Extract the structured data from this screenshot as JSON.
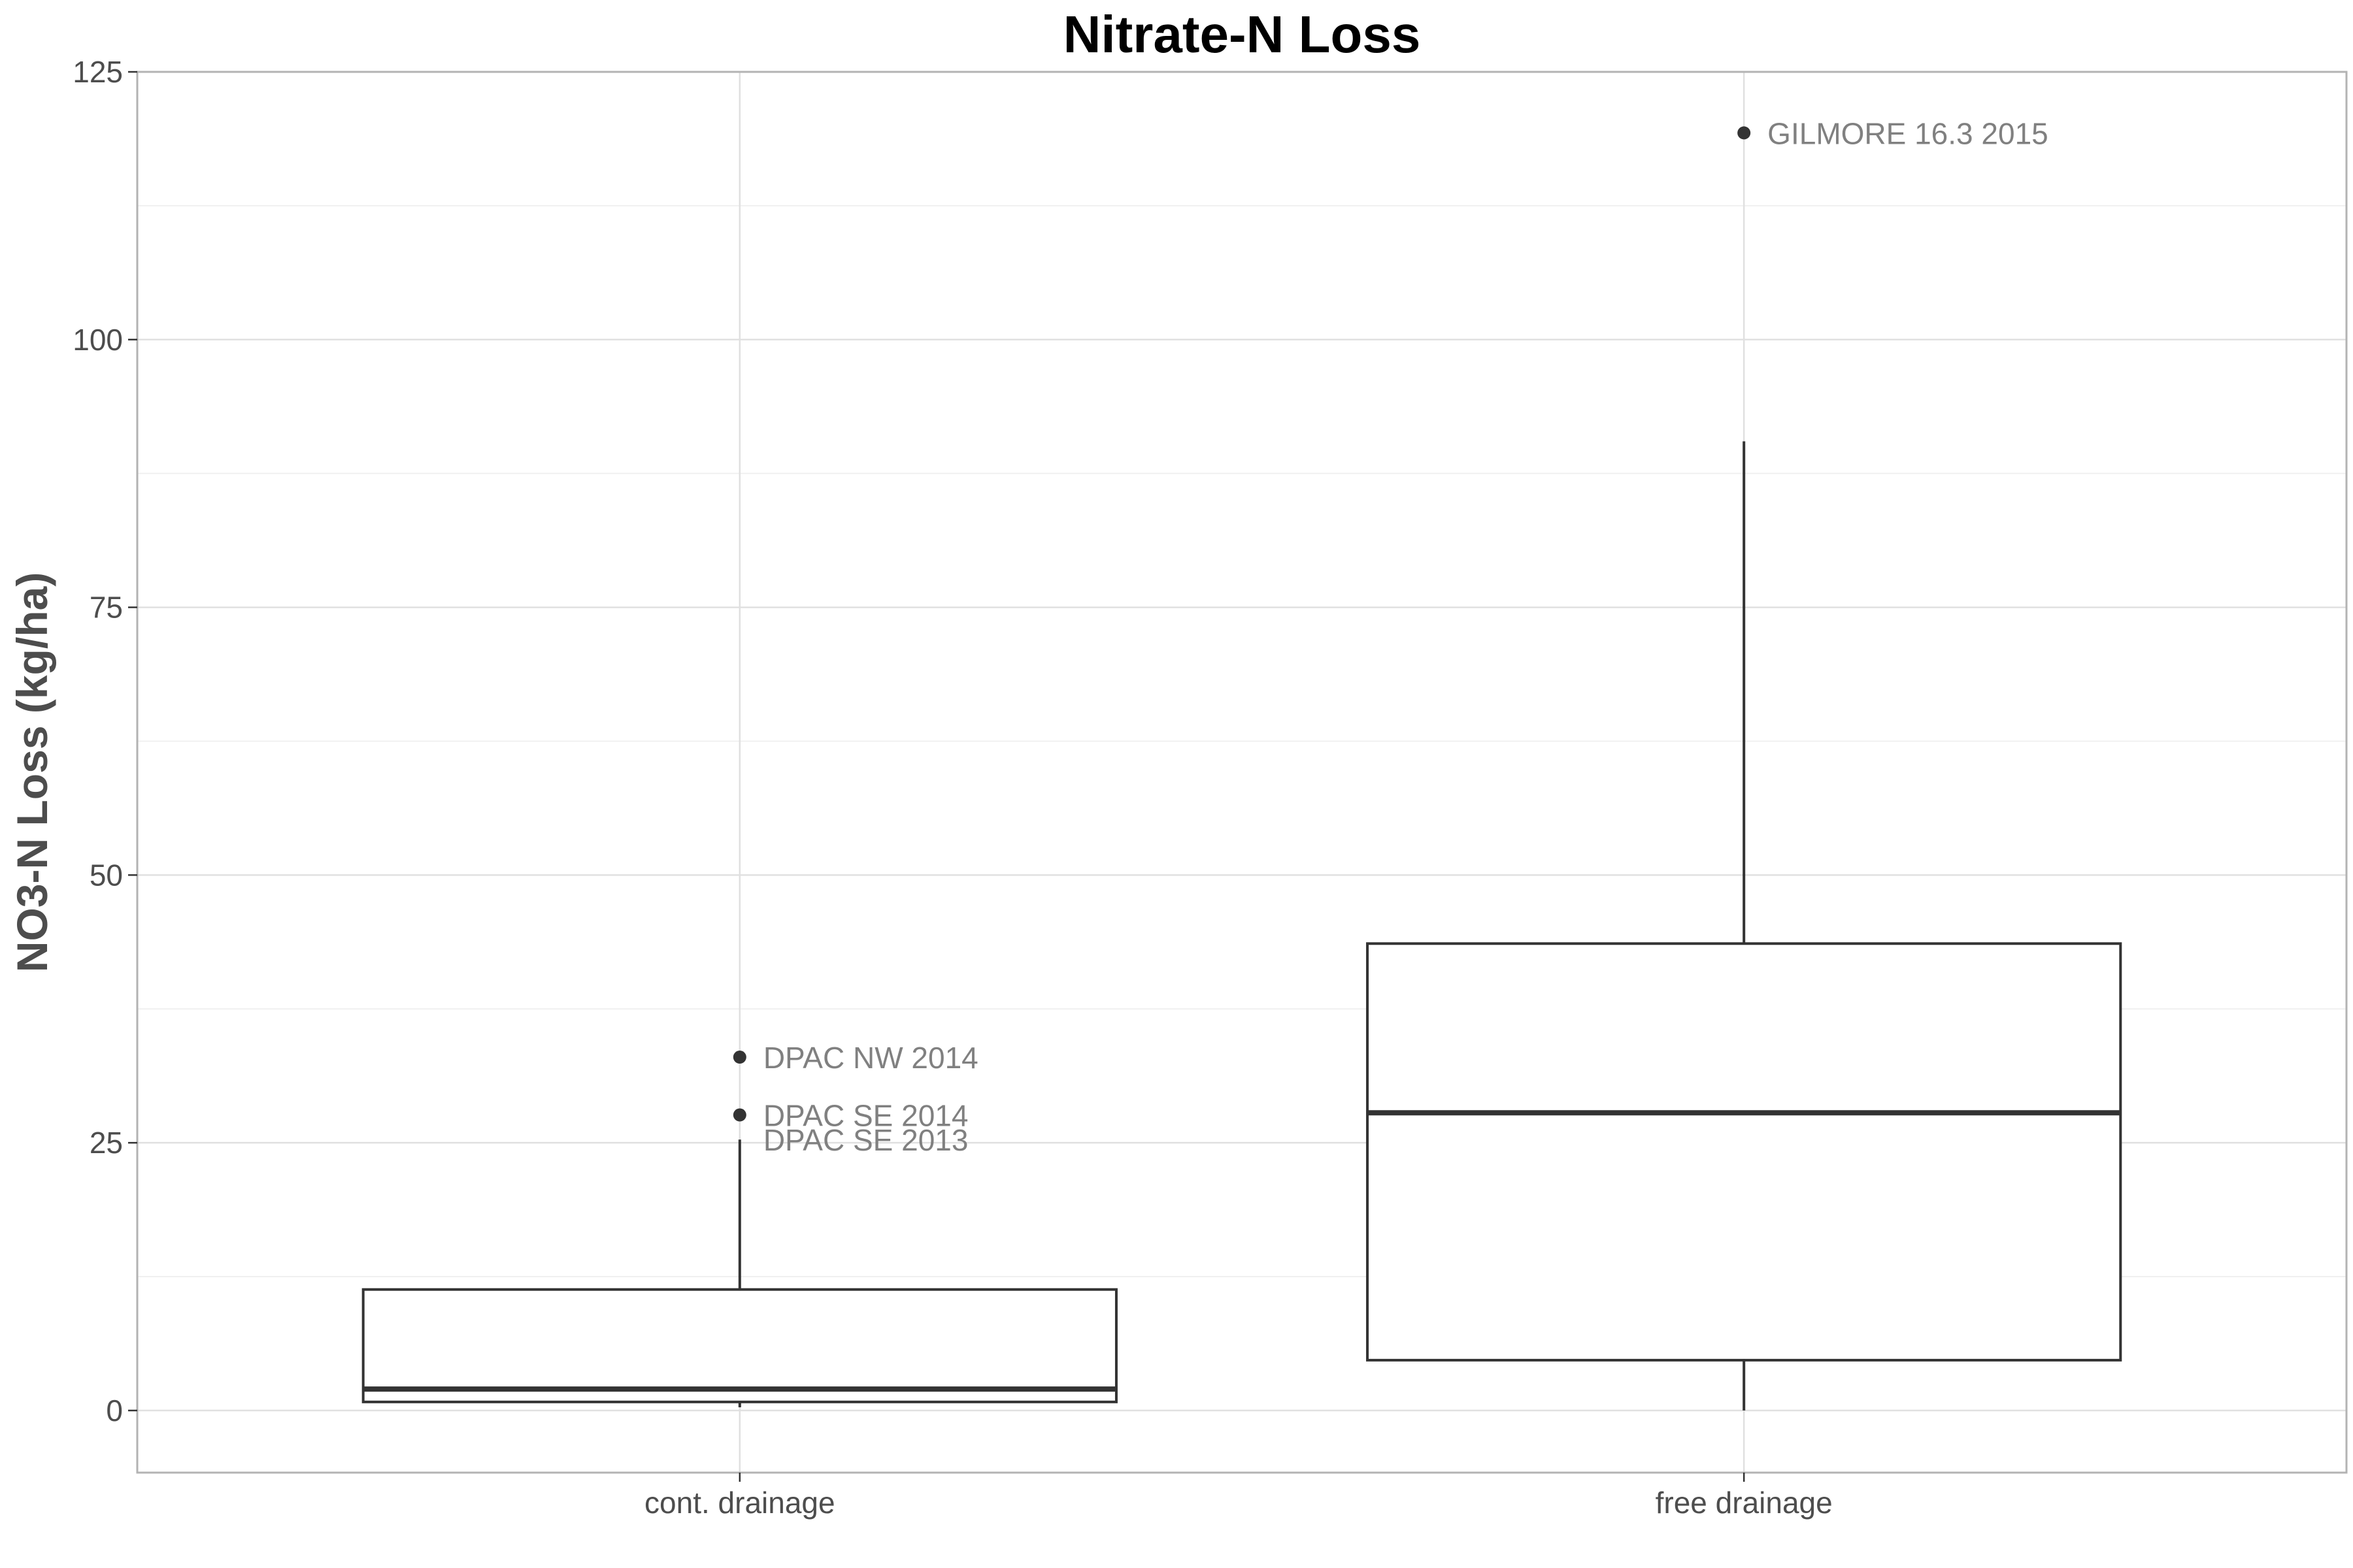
{
  "chart_data": {
    "type": "boxplot",
    "title": "Nitrate-N Loss",
    "xlabel": "",
    "ylabel": "NO3-N Loss (kg/ha)",
    "ylim": [
      -5.8,
      125
    ],
    "yticks": [
      0,
      25,
      50,
      75,
      100,
      125
    ],
    "y_tick_labels": [
      "0",
      "25",
      "50",
      "75",
      "100",
      "125"
    ],
    "grid": true,
    "legend": "none",
    "categories": [
      "cont. drainage",
      "free drainage"
    ],
    "boxes": [
      {
        "category": "cont. drainage",
        "whisker_low": 0.3,
        "q1": 0.8,
        "median": 2.0,
        "q3": 11.3,
        "whisker_high": 25.3,
        "outliers": [
          {
            "value": 33.0,
            "label": "DPAC NW 2014"
          },
          {
            "value": 27.6,
            "label": "DPAC SE 2014"
          },
          {
            "value": 25.3,
            "label": "DPAC SE 2013"
          }
        ]
      },
      {
        "category": "free drainage",
        "whisker_low": 0.0,
        "q1": 4.7,
        "median": 27.8,
        "q3": 43.6,
        "whisker_high": 90.5,
        "outliers": [
          {
            "value": 119.3,
            "label": "GILMORE 16.3 2015"
          }
        ]
      }
    ]
  },
  "colors": {
    "panel_border": "#b3b3b3",
    "grid_major": "#e0e0e0",
    "grid_minor": "#f0f0f0",
    "box_stroke": "#333333",
    "point": "#333333",
    "tick_text": "#4d4d4d",
    "label_text": "#808080",
    "title_text": "#000000"
  }
}
